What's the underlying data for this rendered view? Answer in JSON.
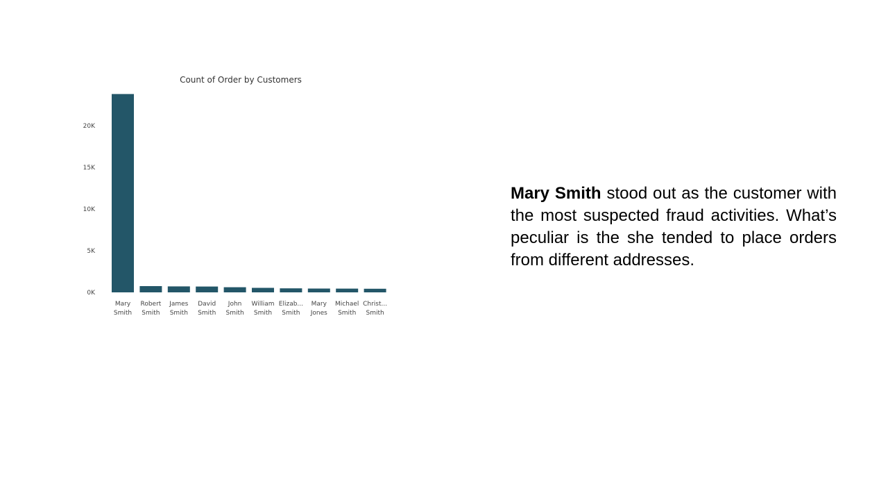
{
  "chart_data": {
    "type": "bar",
    "title": "Count of Order by Customers",
    "categories": [
      [
        "Mary",
        "Smith"
      ],
      [
        "Robert",
        "Smith"
      ],
      [
        "James",
        "Smith"
      ],
      [
        "David",
        "Smith"
      ],
      [
        "John",
        "Smith"
      ],
      [
        "William",
        "Smith"
      ],
      [
        "Elizab...",
        "Smith"
      ],
      [
        "Mary",
        "Jones"
      ],
      [
        "Michael",
        "Smith"
      ],
      [
        "Christ...",
        "Smith"
      ]
    ],
    "values": [
      23800,
      750,
      720,
      700,
      620,
      540,
      480,
      460,
      450,
      430
    ],
    "ylim": [
      0,
      24000
    ],
    "yticks": [
      0,
      5000,
      10000,
      15000,
      20000
    ],
    "ytick_labels": [
      "0K",
      "5K",
      "10K",
      "15K",
      "20K"
    ],
    "xlabel": "",
    "ylabel": "",
    "grid": false,
    "bar_color": "#235668"
  },
  "annotation": {
    "emphasis": "Mary Smith",
    "text": " stood out as the customer with the most suspected fraud activities. What’s peculiar is the she tended to place orders from different addresses."
  }
}
